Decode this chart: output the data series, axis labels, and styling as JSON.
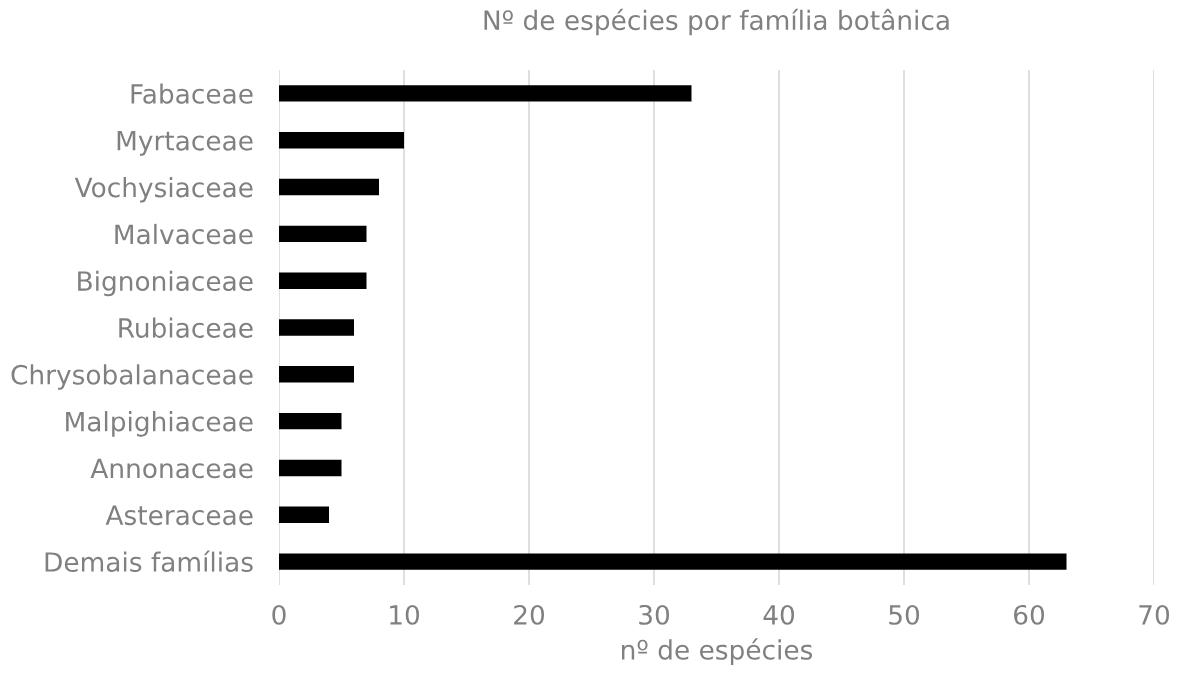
{
  "chart_data": {
    "type": "bar",
    "orientation": "horizontal",
    "title": "Nº de espécies por família botânica",
    "xlabel": "nº de espécies",
    "categories": [
      "Fabaceae",
      "Myrtaceae",
      "Vochysiaceae",
      "Malvaceae",
      "Bignoniaceae",
      "Rubiaceae",
      "Chrysobalanaceae",
      "Malpighiaceae",
      "Annonaceae",
      "Asteraceae",
      "Demais famílias"
    ],
    "values": [
      33,
      10,
      8,
      7,
      7,
      6,
      6,
      5,
      5,
      4,
      63
    ],
    "color": "#000000",
    "xlim": [
      0,
      70
    ],
    "xticks": [
      0,
      10,
      20,
      30,
      40,
      50,
      60,
      70
    ],
    "grid": "x"
  }
}
